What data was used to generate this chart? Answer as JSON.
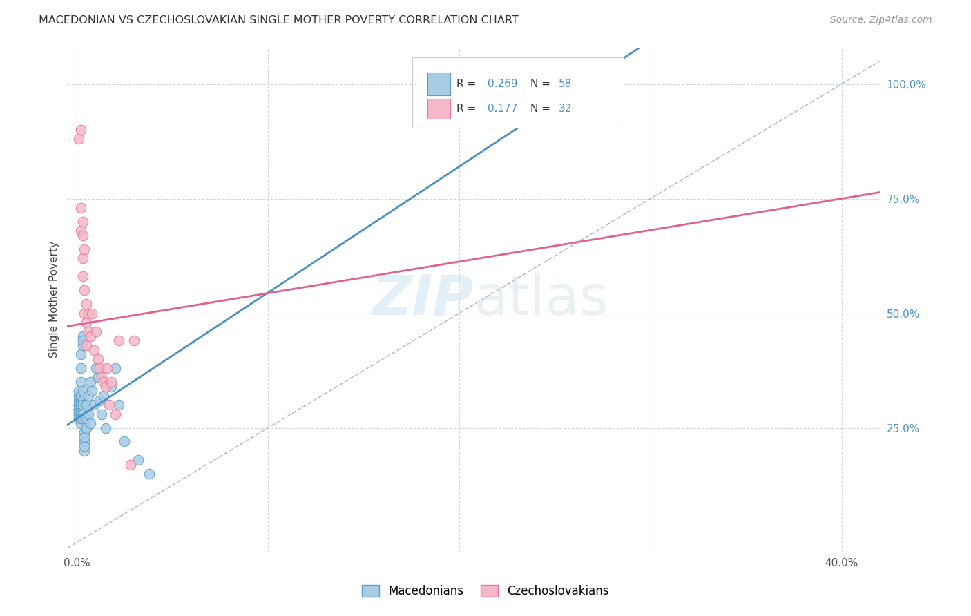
{
  "title": "MACEDONIAN VS CZECHOSLOVAKIAN SINGLE MOTHER POVERTY CORRELATION CHART",
  "source": "Source: ZipAtlas.com",
  "ylabel": "Single Mother Poverty",
  "xlim": [
    -0.005,
    0.42
  ],
  "ylim": [
    -0.02,
    1.08
  ],
  "ytick_positions": [
    0.0,
    0.25,
    0.5,
    0.75,
    1.0
  ],
  "ytick_labels": [
    "",
    "25.0%",
    "50.0%",
    "75.0%",
    "100.0%"
  ],
  "blue_R": 0.269,
  "blue_N": 58,
  "pink_R": 0.177,
  "pink_N": 32,
  "blue_color": "#a8cce4",
  "pink_color": "#f4b8c8",
  "blue_edge_color": "#5a9dc8",
  "pink_edge_color": "#e8789a",
  "blue_line_color": "#4a90c4",
  "pink_line_color": "#e06090",
  "right_tick_color": "#4a90c4",
  "macedonian_x": [
    0.001,
    0.001,
    0.001,
    0.001,
    0.001,
    0.001,
    0.001,
    0.001,
    0.001,
    0.001,
    0.002,
    0.002,
    0.002,
    0.002,
    0.002,
    0.002,
    0.002,
    0.002,
    0.002,
    0.002,
    0.002,
    0.002,
    0.002,
    0.003,
    0.003,
    0.003,
    0.003,
    0.003,
    0.003,
    0.003,
    0.003,
    0.003,
    0.004,
    0.004,
    0.004,
    0.004,
    0.004,
    0.005,
    0.005,
    0.005,
    0.006,
    0.006,
    0.007,
    0.007,
    0.008,
    0.009,
    0.01,
    0.011,
    0.012,
    0.013,
    0.014,
    0.015,
    0.018,
    0.02,
    0.022,
    0.025,
    0.032,
    0.038
  ],
  "macedonian_y": [
    0.28,
    0.3,
    0.29,
    0.31,
    0.27,
    0.3,
    0.32,
    0.28,
    0.29,
    0.33,
    0.29,
    0.27,
    0.3,
    0.31,
    0.28,
    0.26,
    0.32,
    0.29,
    0.3,
    0.27,
    0.35,
    0.38,
    0.41,
    0.29,
    0.31,
    0.28,
    0.33,
    0.3,
    0.27,
    0.43,
    0.45,
    0.44,
    0.22,
    0.24,
    0.2,
    0.21,
    0.23,
    0.25,
    0.27,
    0.3,
    0.28,
    0.32,
    0.26,
    0.35,
    0.33,
    0.3,
    0.38,
    0.36,
    0.31,
    0.28,
    0.32,
    0.25,
    0.34,
    0.38,
    0.3,
    0.22,
    0.18,
    0.15
  ],
  "czechoslovakian_x": [
    0.001,
    0.002,
    0.002,
    0.002,
    0.003,
    0.003,
    0.003,
    0.003,
    0.004,
    0.004,
    0.004,
    0.005,
    0.005,
    0.005,
    0.006,
    0.006,
    0.007,
    0.008,
    0.009,
    0.01,
    0.011,
    0.012,
    0.013,
    0.014,
    0.015,
    0.016,
    0.017,
    0.018,
    0.02,
    0.022,
    0.028,
    0.03
  ],
  "czechoslovakian_y": [
    0.88,
    0.9,
    0.68,
    0.73,
    0.7,
    0.67,
    0.62,
    0.58,
    0.64,
    0.55,
    0.5,
    0.52,
    0.48,
    0.43,
    0.5,
    0.46,
    0.45,
    0.5,
    0.42,
    0.46,
    0.4,
    0.38,
    0.36,
    0.35,
    0.34,
    0.38,
    0.3,
    0.35,
    0.28,
    0.44,
    0.17,
    0.44
  ]
}
